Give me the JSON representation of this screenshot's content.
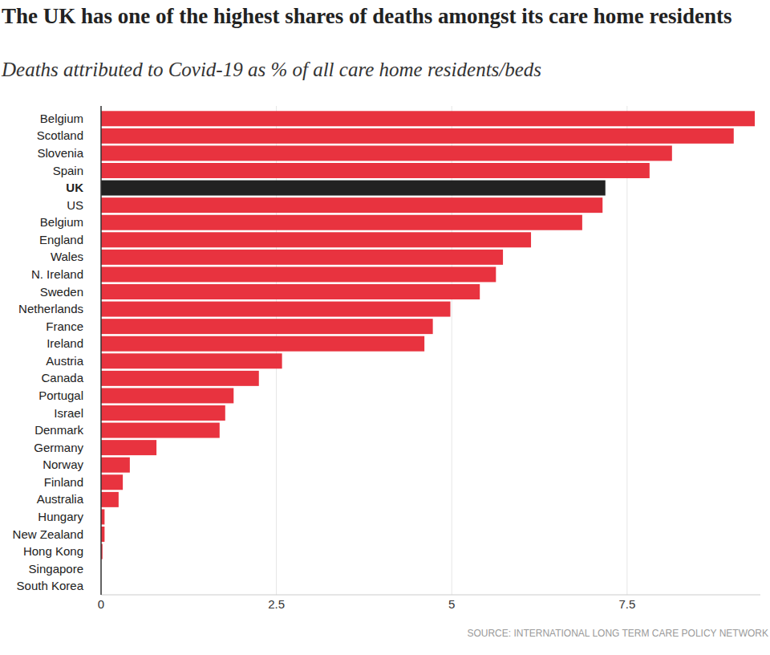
{
  "chart_data": {
    "type": "bar",
    "orientation": "horizontal",
    "title": "The UK has one of the highest shares of deaths amongst its care home residents",
    "subtitle": "Deaths attributed to Covid-19 as % of all care home residents/beds",
    "source": "SOURCE: INTERNATIONAL LONG TERM CARE POLICY NETWORK",
    "categories": [
      "Belgium",
      "Scotland",
      "Slovenia",
      "Spain",
      "UK",
      "US",
      "Belgium",
      "England",
      "Wales",
      "N. Ireland",
      "Sweden",
      "Netherlands",
      "France",
      "Ireland",
      "Austria",
      "Canada",
      "Portugal",
      "Israel",
      "Denmark",
      "Germany",
      "Norway",
      "Finland",
      "Australia",
      "Hungary",
      "New Zealand",
      "Hong Kong",
      "Singapore",
      "South Korea"
    ],
    "values": [
      9.32,
      9.02,
      8.14,
      7.82,
      7.19,
      7.15,
      6.86,
      6.13,
      5.73,
      5.63,
      5.4,
      4.98,
      4.73,
      4.61,
      2.58,
      2.25,
      1.89,
      1.77,
      1.69,
      0.79,
      0.41,
      0.31,
      0.25,
      0.05,
      0.05,
      0.02,
      0,
      0
    ],
    "colors": [
      "#e8333f",
      "#e8333f",
      "#e8333f",
      "#e8333f",
      "#222222",
      "#e8333f",
      "#e8333f",
      "#e8333f",
      "#e8333f",
      "#e8333f",
      "#e8333f",
      "#e8333f",
      "#e8333f",
      "#e8333f",
      "#e8333f",
      "#e8333f",
      "#e8333f",
      "#e8333f",
      "#e8333f",
      "#e8333f",
      "#e8333f",
      "#e8333f",
      "#e8333f",
      "#e8333f",
      "#e8333f",
      "#e8333f",
      "#e8333f",
      "#e8333f"
    ],
    "xlim": [
      0,
      9.4
    ],
    "xticks": [
      0,
      2.5,
      5,
      7.5
    ],
    "grid": true
  }
}
